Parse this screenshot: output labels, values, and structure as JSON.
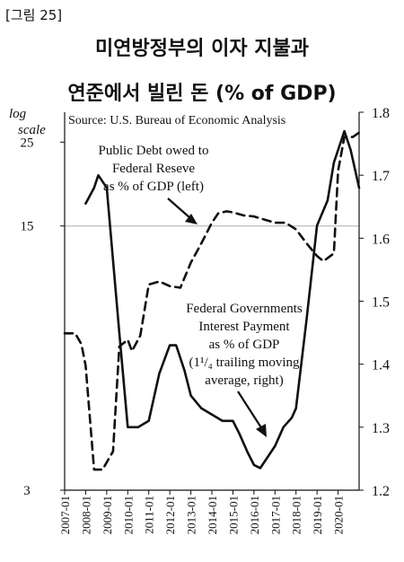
{
  "figure_label": "[그림 25]",
  "title_line1": "미연방정부의 이자 지불과",
  "title_line2": "연준에서 빌린 돈 (% of GDP)",
  "chart_data": {
    "type": "line",
    "source": "Source: U.S. Bureau of Economic Analysis",
    "left_axis": {
      "label_line1": "log",
      "label_line2": "scale",
      "scale": "log",
      "range": [
        3,
        30
      ],
      "ticks": [
        3,
        15,
        25
      ],
      "tick_labels": [
        "3",
        "15",
        "25"
      ],
      "reference_line": 15
    },
    "right_axis": {
      "scale": "linear",
      "range": [
        1.2,
        1.8
      ],
      "ticks": [
        1.2,
        1.3,
        1.4,
        1.5,
        1.6,
        1.7,
        1.8
      ],
      "tick_labels": [
        "1.2",
        "1.3",
        "1.4",
        "1.5",
        "1.6",
        "1.7",
        "1.8"
      ]
    },
    "x_axis": {
      "range": [
        2007.0,
        2021.0
      ],
      "tick_labels": [
        "2007-01",
        "2008-01",
        "2009-01",
        "2010-01",
        "2011-01",
        "2012-01",
        "2013-01",
        "2014-01",
        "2015-01",
        "2016-01",
        "2017-01",
        "2018-01",
        "2019-01",
        "2020-01"
      ]
    },
    "series": [
      {
        "name": "Public Debt owed to Federal Reseve as % of GDP (left)",
        "axis": "left",
        "style": "dashed",
        "x": [
          2007.0,
          2007.5,
          2007.8,
          2008.0,
          2008.4,
          2008.8,
          2009.3,
          2009.6,
          2010.0,
          2010.2,
          2010.6,
          2011.0,
          2011.5,
          2012.0,
          2012.5,
          2013.0,
          2013.5,
          2014.0,
          2014.3,
          2014.7,
          2015.0,
          2015.5,
          2016.0,
          2016.5,
          2017.0,
          2017.5,
          2018.0,
          2018.5,
          2019.0,
          2019.3,
          2019.8,
          2020.0,
          2020.3,
          2020.7,
          2021.0
        ],
        "values": [
          7.8,
          7.8,
          7.3,
          6.4,
          3.4,
          3.4,
          3.8,
          7.2,
          7.5,
          7.0,
          7.7,
          10.5,
          10.7,
          10.4,
          10.3,
          12.0,
          13.5,
          15.3,
          16.2,
          16.4,
          16.3,
          16.0,
          15.9,
          15.6,
          15.3,
          15.3,
          14.7,
          13.5,
          12.5,
          12.1,
          12.7,
          21.0,
          25.8,
          25.8,
          26.5
        ]
      },
      {
        "name": "Federal Governments Interest Payment as % of GDP (1¹/₄ trailing moving average, right)",
        "axis": "right",
        "style": "solid",
        "x": [
          2008.0,
          2008.4,
          2008.6,
          2009.0,
          2009.6,
          2010.0,
          2010.5,
          2011.0,
          2011.5,
          2012.0,
          2012.3,
          2012.7,
          2013.0,
          2013.5,
          2014.0,
          2014.5,
          2015.0,
          2015.3,
          2015.7,
          2016.0,
          2016.3,
          2016.7,
          2017.0,
          2017.4,
          2017.8,
          2018.0,
          2018.5,
          2019.0,
          2019.5,
          2019.8,
          2020.1,
          2020.3,
          2020.6,
          2021.0
        ],
        "values": [
          1.655,
          1.68,
          1.7,
          1.68,
          1.45,
          1.3,
          1.3,
          1.31,
          1.385,
          1.43,
          1.43,
          1.39,
          1.35,
          1.33,
          1.32,
          1.31,
          1.31,
          1.29,
          1.26,
          1.24,
          1.235,
          1.255,
          1.27,
          1.3,
          1.315,
          1.33,
          1.47,
          1.62,
          1.66,
          1.72,
          1.75,
          1.77,
          1.74,
          1.68
        ]
      }
    ],
    "annotations": [
      {
        "text_lines": [
          "Public Debt owed to",
          "Federal Reseve",
          "as % of GDP (left)"
        ]
      },
      {
        "text_lines": [
          "Federal Governments",
          "Interest Payment",
          "as % of GDP",
          "(1¹/₄ trailing moving",
          "average, right)"
        ]
      }
    ],
    "grid": false
  },
  "colors": {
    "line": "#111111",
    "reference_line": "#bdbdbd",
    "background": "#ffffff"
  }
}
